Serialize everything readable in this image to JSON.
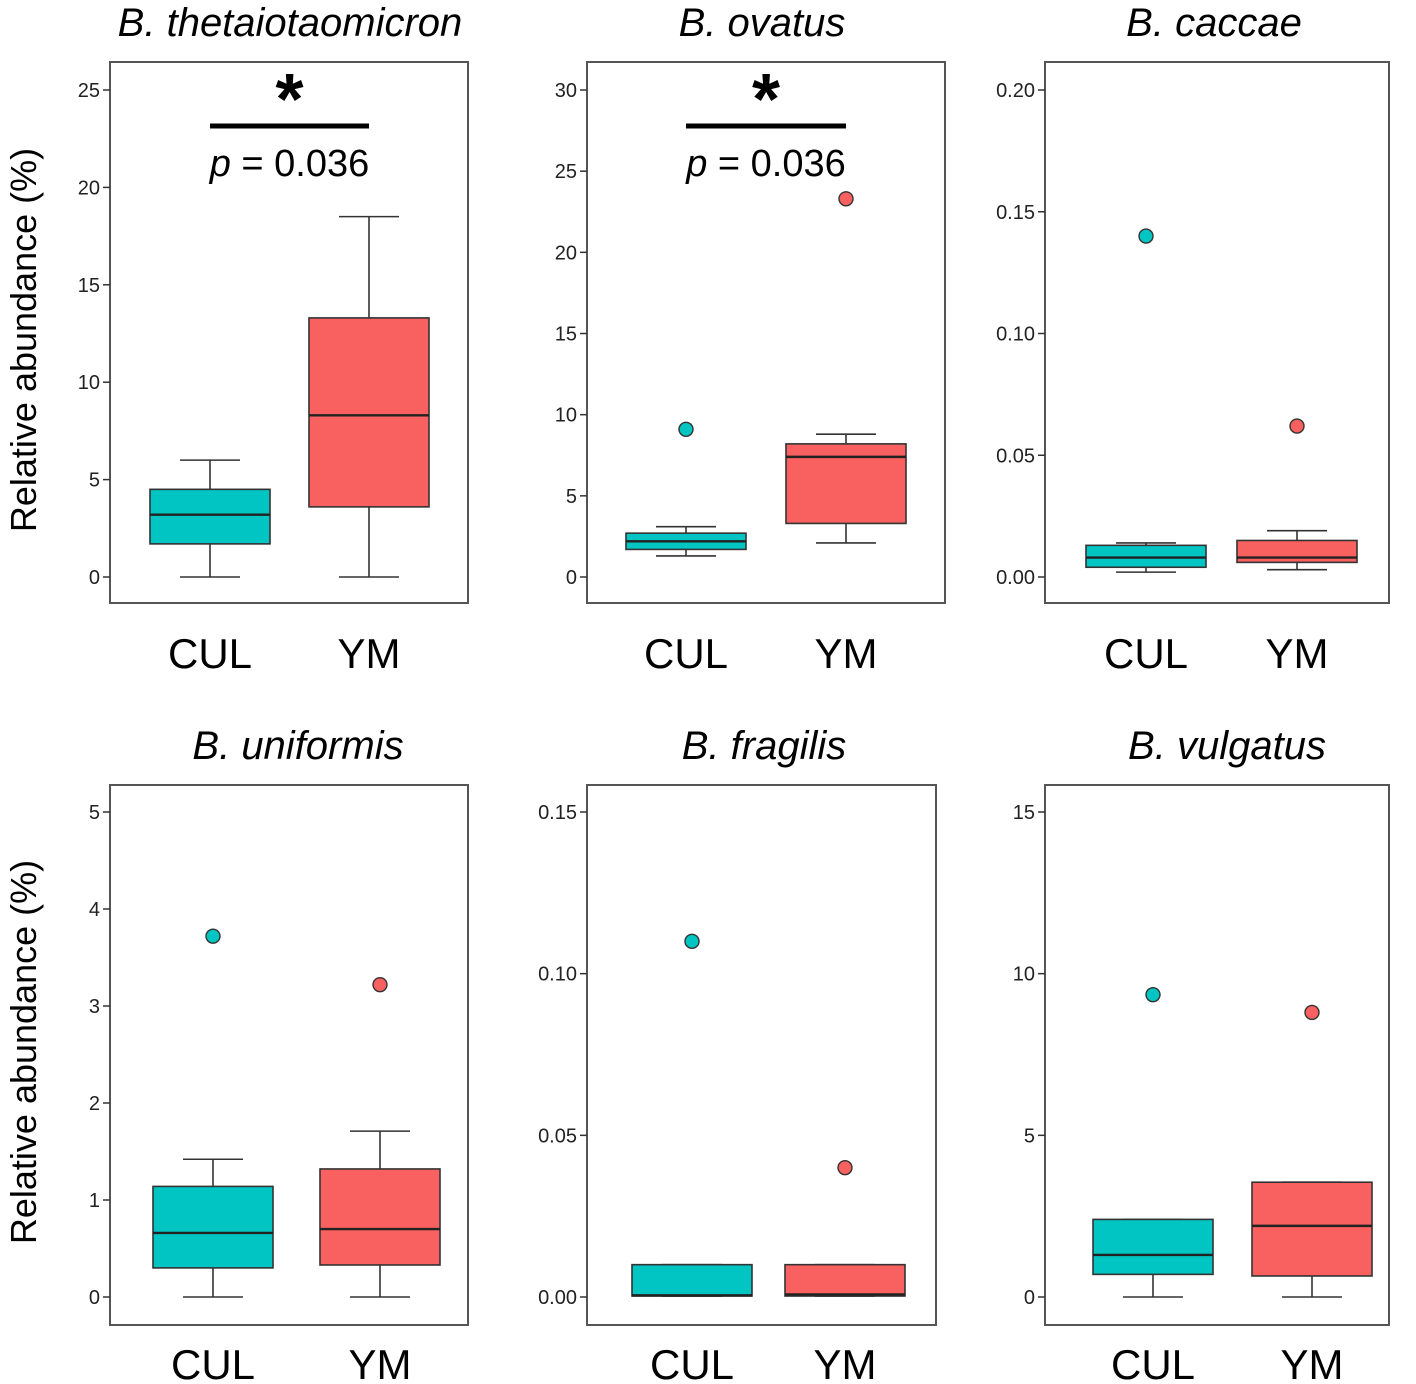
{
  "y_axis_label": "Relative abundance  (%)",
  "colors": {
    "CUL": "#00C5C3",
    "YM": "#F8615F",
    "line": "#333333"
  },
  "chart_data": [
    {
      "type": "box",
      "title": "B. thetaiotaomicron",
      "ylim": [
        0,
        25
      ],
      "yticks": [
        "0",
        "5",
        "10",
        "15",
        "20",
        "25"
      ],
      "categories": [
        "CUL",
        "YM"
      ],
      "boxes": [
        {
          "group": "CUL",
          "min": 0,
          "q1": 1.7,
          "median": 3.2,
          "q3": 4.5,
          "max": 6.0,
          "outliers": []
        },
        {
          "group": "YM",
          "min": 0,
          "q1": 3.6,
          "median": 8.3,
          "q3": 13.3,
          "max": 18.5,
          "outliers": []
        }
      ],
      "significance": {
        "star": "*",
        "p_prefix": "p",
        "p_value": " = 0.036"
      }
    },
    {
      "type": "box",
      "title": "B. ovatus",
      "ylim": [
        0,
        30
      ],
      "yticks": [
        "0",
        "5",
        "10",
        "15",
        "20",
        "25",
        "30"
      ],
      "categories": [
        "CUL",
        "YM"
      ],
      "boxes": [
        {
          "group": "CUL",
          "min": 1.3,
          "q1": 1.7,
          "median": 2.2,
          "q3": 2.7,
          "max": 3.1,
          "outliers": [
            9.1
          ]
        },
        {
          "group": "YM",
          "min": 2.1,
          "q1": 3.3,
          "median": 7.4,
          "q3": 8.2,
          "max": 8.8,
          "outliers": [
            23.3
          ]
        }
      ],
      "significance": {
        "star": "*",
        "p_prefix": "p",
        "p_value": " = 0.036"
      }
    },
    {
      "type": "box",
      "title": "B. caccae",
      "ylim": [
        0,
        0.2
      ],
      "yticks": [
        "0.00",
        "0.05",
        "0.10",
        "0.15",
        "0.20"
      ],
      "categories": [
        "CUL",
        "YM"
      ],
      "boxes": [
        {
          "group": "CUL",
          "min": 0.002,
          "q1": 0.004,
          "median": 0.008,
          "q3": 0.013,
          "max": 0.014,
          "outliers": [
            0.14
          ]
        },
        {
          "group": "YM",
          "min": 0.003,
          "q1": 0.006,
          "median": 0.008,
          "q3": 0.015,
          "max": 0.019,
          "outliers": [
            0.062
          ]
        }
      ]
    },
    {
      "type": "box",
      "title": "B. uniformis",
      "ylim": [
        0,
        5
      ],
      "yticks": [
        "0",
        "1",
        "2",
        "3",
        "4",
        "5"
      ],
      "categories": [
        "CUL",
        "YM"
      ],
      "boxes": [
        {
          "group": "CUL",
          "min": 0,
          "q1": 0.3,
          "median": 0.66,
          "q3": 1.14,
          "max": 1.42,
          "outliers": [
            3.72
          ]
        },
        {
          "group": "YM",
          "min": 0,
          "q1": 0.33,
          "median": 0.7,
          "q3": 1.32,
          "max": 1.71,
          "outliers": [
            3.22
          ]
        }
      ]
    },
    {
      "type": "box",
      "title": "B. fragilis",
      "ylim": [
        0,
        0.15
      ],
      "yticks": [
        "0.00",
        "0.05",
        "0.10",
        "0.15"
      ],
      "categories": [
        "CUL",
        "YM"
      ],
      "boxes": [
        {
          "group": "CUL",
          "min": 0.0003,
          "q1": 0.0003,
          "median": 0.0005,
          "q3": 0.01,
          "max": 0.01,
          "outliers": [
            0.11
          ]
        },
        {
          "group": "YM",
          "min": 0.0003,
          "q1": 0.0003,
          "median": 0.0008,
          "q3": 0.01,
          "max": 0.01,
          "outliers": [
            0.04
          ]
        }
      ]
    },
    {
      "type": "box",
      "title": "B. vulgatus",
      "ylim": [
        0,
        15
      ],
      "yticks": [
        "0",
        "5",
        "10",
        "15"
      ],
      "categories": [
        "CUL",
        "YM"
      ],
      "boxes": [
        {
          "group": "CUL",
          "min": 0,
          "q1": 0.7,
          "median": 1.3,
          "q3": 2.4,
          "max": 2.4,
          "outliers": [
            9.35
          ]
        },
        {
          "group": "YM",
          "min": 0,
          "q1": 0.65,
          "median": 2.2,
          "q3": 3.55,
          "max": 3.55,
          "outliers": [
            8.8
          ]
        }
      ]
    }
  ]
}
